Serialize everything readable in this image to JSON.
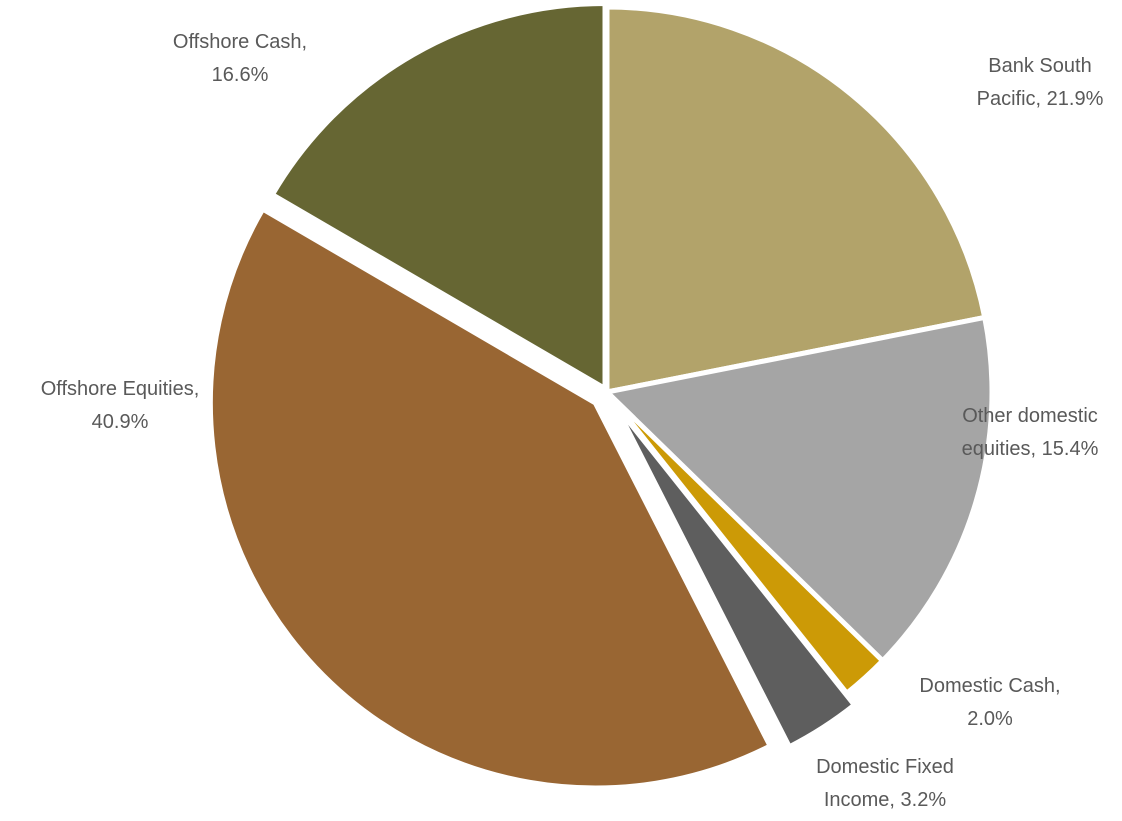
{
  "chart_data": {
    "type": "pie",
    "values": [
      21.9,
      15.4,
      2.0,
      3.2,
      40.9,
      16.6
    ],
    "value_labels": [
      "Bank South Pacific, 21.9%",
      "Other domestic equities, 15.4%",
      "Domestic Cash, 2.0%",
      "Domestic Fixed Income, 3.2%",
      "Offshore Equities, 40.9%",
      "Offshore Cash, 16.6%"
    ],
    "colors": [
      "#b2a36a",
      "#a5a5a5",
      "#cc9a06",
      "#5e5e5e",
      "#996633",
      "#666633"
    ]
  }
}
